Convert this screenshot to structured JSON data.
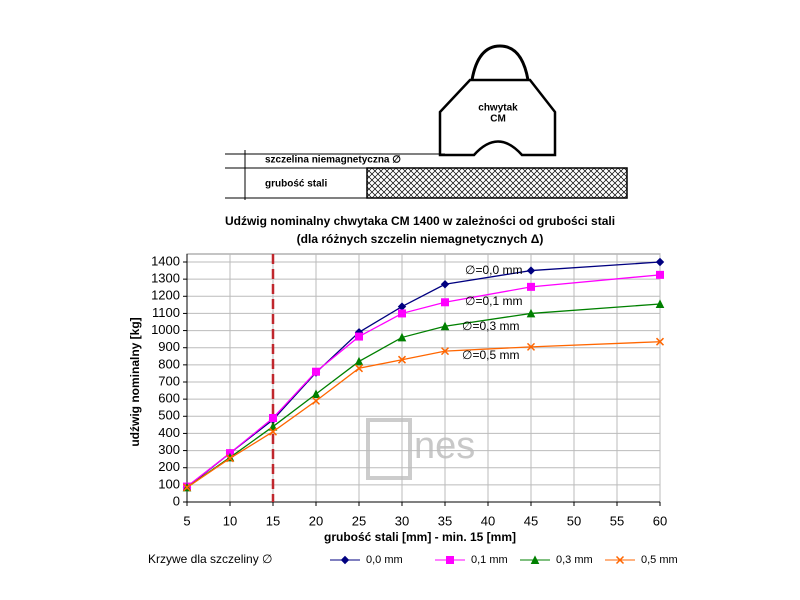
{
  "diagram": {
    "gripper_label_1": "chwytak",
    "gripper_label_2": "CM",
    "gap_label": "szczelina niemagnetyczna  ∅",
    "thickness_label": "grubość stali"
  },
  "chart_data": {
    "type": "line",
    "title": "Udźwig nominalny chwytaka CM 1400   w zależności od grubości stali",
    "subtitle": "(dla różnych szczelin niemagnetycznych Δ)",
    "x_label": "grubość stali [mm] - min. 15 [mm]",
    "y_label": "udźwig nominalny [kg]",
    "x": [
      5,
      10,
      15,
      20,
      25,
      30,
      35,
      45,
      60
    ],
    "series": [
      {
        "name": "0,0 mm",
        "color": "#000080",
        "marker": "diamond",
        "values": [
          85,
          285,
          480,
          755,
          990,
          1140,
          1270,
          1350,
          1400
        ]
      },
      {
        "name": "0,1 mm",
        "color": "#ff00ff",
        "marker": "square",
        "values": [
          90,
          285,
          490,
          760,
          965,
          1100,
          1165,
          1255,
          1325
        ]
      },
      {
        "name": "0,3 mm",
        "color": "#008000",
        "marker": "triangle",
        "values": [
          85,
          260,
          440,
          630,
          820,
          960,
          1025,
          1100,
          1155
        ]
      },
      {
        "name": "0,5 mm",
        "color": "#ff6600",
        "marker": "x",
        "values": [
          85,
          255,
          410,
          590,
          780,
          830,
          880,
          905,
          935
        ]
      }
    ],
    "annotations": [
      "∅=0,0 mm",
      "∅=0,1 mm",
      "∅=0,3 mm",
      "∅=0,5 mm"
    ],
    "legend_title": "Krzywe dla szczeliny ∅",
    "reference_line_x": 15,
    "reference_line_color": "#c0272d",
    "watermark": "nes",
    "xlim": [
      5,
      60
    ],
    "xticks": [
      5,
      10,
      15,
      20,
      25,
      30,
      35,
      40,
      45,
      50,
      55,
      60
    ],
    "ylim": [
      0,
      1400
    ],
    "yticks": [
      0,
      100,
      200,
      300,
      400,
      500,
      600,
      700,
      800,
      900,
      1000,
      1100,
      1200,
      1300,
      1400
    ],
    "grid": true
  }
}
